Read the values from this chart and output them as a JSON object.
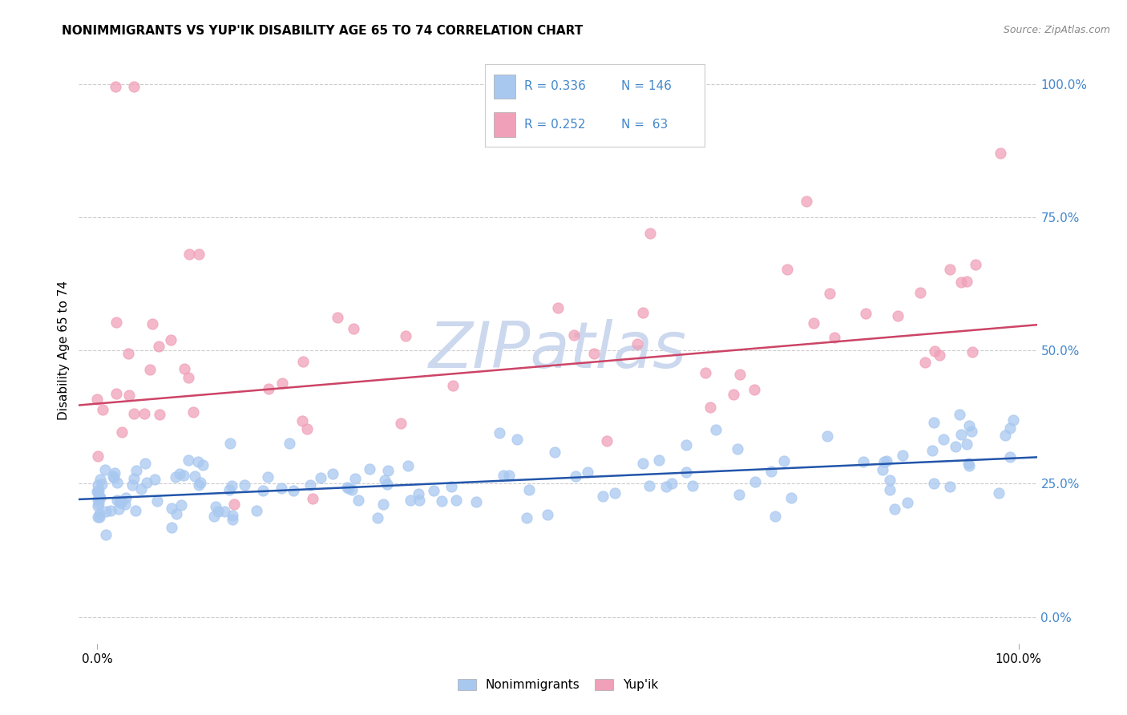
{
  "title": "NONIMMIGRANTS VS YUP'IK DISABILITY AGE 65 TO 74 CORRELATION CHART",
  "source": "Source: ZipAtlas.com",
  "ylabel": "Disability Age 65 to 74",
  "legend_labels": [
    "Nonimmigrants",
    "Yup'ik"
  ],
  "blue_R": 0.336,
  "blue_N": 146,
  "pink_R": 0.252,
  "pink_N": 63,
  "blue_color": "#a8c8f0",
  "pink_color": "#f0a0b8",
  "trend_blue": "#2255aa",
  "trend_pink": "#cc4466",
  "watermark_text": "ZIPatlas",
  "xmin": 0.0,
  "xmax": 1.0,
  "ymin": -0.05,
  "ymax": 1.05,
  "ytick_values": [
    0.0,
    0.25,
    0.5,
    0.75,
    1.0
  ],
  "ytick_labels": [
    "0.0%",
    "25.0%",
    "50.0%",
    "75.0%",
    "100.0%"
  ],
  "xtick_values": [
    0.0,
    1.0
  ],
  "xtick_labels": [
    "0.0%",
    "100.0%"
  ],
  "blue_trend_y0": 0.222,
  "blue_trend_y1": 0.298,
  "pink_trend_y0": 0.4,
  "pink_trend_y1": 0.545,
  "grid_color": "#cccccc",
  "background_color": "#ffffff",
  "watermark_color": "#ccd8ee",
  "legend_R1": "R = 0.336",
  "legend_N1": "N = 146",
  "legend_R2": "R = 0.252",
  "legend_N2": "N =  63"
}
